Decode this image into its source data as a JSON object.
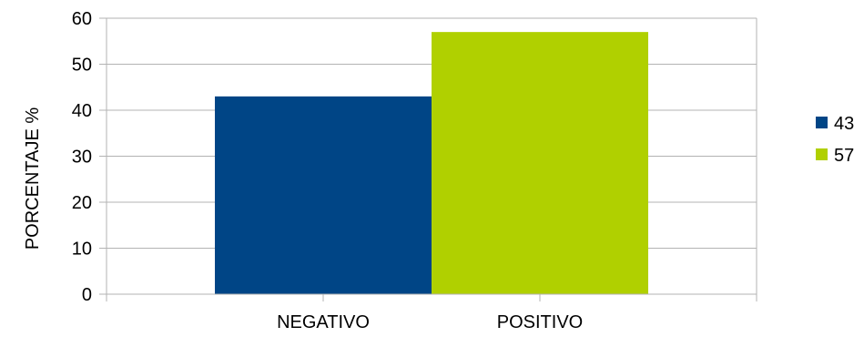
{
  "chart_data": {
    "type": "bar",
    "categories": [
      "NEGATIVO",
      "POSITIVO"
    ],
    "series": [
      {
        "name": "43",
        "values": [
          43,
          null
        ],
        "color": "#004586"
      },
      {
        "name": "57",
        "values": [
          null,
          57
        ],
        "color": "#b0d000"
      }
    ],
    "title": "",
    "xlabel": "",
    "ylabel": "PORCENTAJE    %",
    "ylim": [
      0,
      60
    ],
    "yticks": [
      0,
      10,
      20,
      30,
      40,
      50,
      60
    ],
    "grid": true,
    "legend_position": "right",
    "bar_layout": "grouped"
  }
}
